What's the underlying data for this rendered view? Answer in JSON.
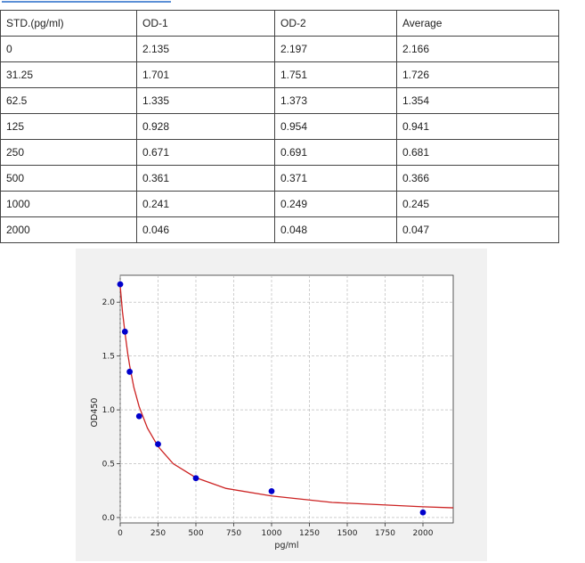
{
  "table": {
    "headers": [
      "STD.(pg/ml)",
      "OD-1",
      "OD-2",
      "Average"
    ],
    "rows": [
      [
        "0",
        "2.135",
        "2.197",
        "2.166"
      ],
      [
        "31.25",
        "1.701",
        "1.751",
        "1.726"
      ],
      [
        "62.5",
        "1.335",
        "1.373",
        "1.354"
      ],
      [
        "125",
        "0.928",
        "0.954",
        "0.941"
      ],
      [
        "250",
        "0.671",
        "0.691",
        "0.681"
      ],
      [
        "500",
        "0.361",
        "0.371",
        "0.366"
      ],
      [
        "1000",
        "0.241",
        "0.249",
        "0.245"
      ],
      [
        "2000",
        "0.046",
        "0.048",
        "0.047"
      ]
    ]
  },
  "chart_data": {
    "type": "scatter",
    "title": "",
    "xlabel": "pg/ml",
    "ylabel": "OD450",
    "xlim": [
      0,
      2200
    ],
    "ylim": [
      -0.05,
      2.25
    ],
    "xticks": [
      0,
      250,
      500,
      750,
      1000,
      1250,
      1500,
      1750,
      2000
    ],
    "yticks": [
      0.0,
      0.5,
      1.0,
      1.5,
      2.0
    ],
    "grid": true,
    "legend": "none",
    "series": [
      {
        "kind": "points",
        "color": "#0000cc",
        "x": [
          0,
          31.25,
          62.5,
          125,
          250,
          500,
          1000,
          2000
        ],
        "y": [
          2.166,
          1.726,
          1.354,
          0.941,
          0.681,
          0.366,
          0.245,
          0.047
        ]
      },
      {
        "kind": "fit-curve",
        "color": "#cc2222",
        "x": [
          0,
          15,
          31.25,
          50,
          62.5,
          90,
          125,
          180,
          250,
          350,
          500,
          700,
          1000,
          1400,
          2000,
          2200
        ],
        "y": [
          2.15,
          1.91,
          1.72,
          1.52,
          1.41,
          1.21,
          1.03,
          0.83,
          0.66,
          0.5,
          0.37,
          0.27,
          0.2,
          0.14,
          0.1,
          0.09
        ]
      }
    ]
  }
}
